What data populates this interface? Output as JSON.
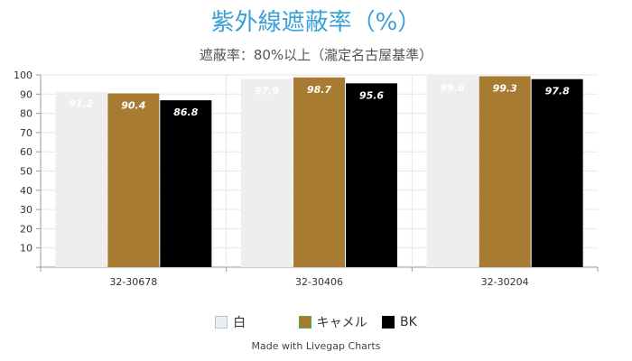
{
  "chart_data": {
    "type": "bar",
    "title": "紫外線遮蔽率（%）",
    "subtitle": "遮蔽率：80%以上（瀧定名古屋基準）",
    "categories": [
      "32-30678",
      "32-30406",
      "32-30204"
    ],
    "series": [
      {
        "name": "白",
        "color": "#eeeeee",
        "border": "#a9c8dc",
        "label_color": "#ffffff",
        "values": [
          91.2,
          97.9,
          99.6
        ]
      },
      {
        "name": "キャメル",
        "color": "#a87b32",
        "border": "#4caf50",
        "label_color": "#ffffff",
        "values": [
          90.4,
          98.7,
          99.3
        ]
      },
      {
        "name": "BK",
        "color": "#000000",
        "border": "#000000",
        "label_color": "#ffffff",
        "values": [
          86.8,
          95.6,
          97.8
        ]
      }
    ],
    "ylim": [
      0,
      100
    ],
    "yticks": [
      10,
      20,
      30,
      40,
      50,
      60,
      70,
      80,
      90,
      100
    ],
    "grid": true
  },
  "legend": [
    "白",
    "キャメル",
    "BK"
  ],
  "credit": "Made with Livegap Charts"
}
